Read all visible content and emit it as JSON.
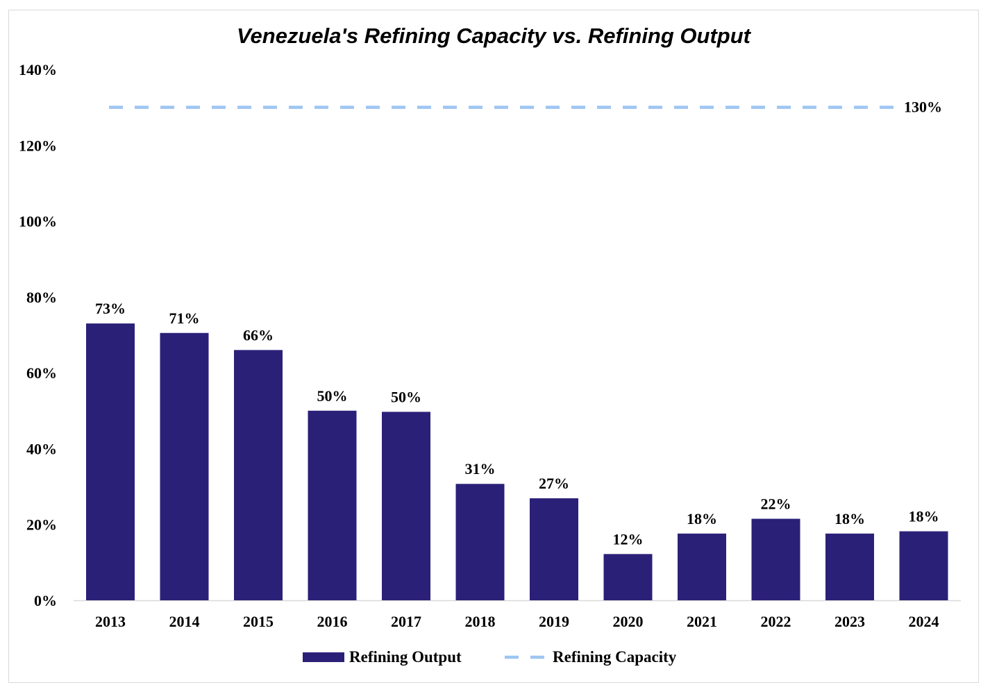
{
  "chart_data": {
    "type": "bar",
    "title": "Venezuela's Refining Capacity vs. Refining Output",
    "xlabel": "",
    "ylabel": "",
    "categories": [
      "2013",
      "2014",
      "2015",
      "2016",
      "2017",
      "2018",
      "2019",
      "2020",
      "2021",
      "2022",
      "2023",
      "2024"
    ],
    "series": [
      {
        "name": "Refining Output",
        "type": "bar",
        "values": [
          73,
          71,
          66,
          50,
          50,
          31,
          27,
          12,
          18,
          22,
          18,
          18
        ],
        "precise_values": [
          73,
          70.5,
          66,
          50,
          49.7,
          30.7,
          26.9,
          12.2,
          17.6,
          21.5,
          17.6,
          18.2
        ],
        "labels": [
          "73%",
          "71%",
          "66%",
          "50%",
          "50%",
          "31%",
          "27%",
          "12%",
          "18%",
          "22%",
          "18%",
          "18%"
        ],
        "color": "#2b2078"
      },
      {
        "name": "Refining Capacity",
        "type": "line",
        "style": "dashed",
        "values": [
          130,
          130,
          130,
          130,
          130,
          130,
          130,
          130,
          130,
          130,
          130,
          130
        ],
        "end_label": "130%",
        "color": "#9ec5f2"
      }
    ],
    "ylim": [
      0,
      140
    ],
    "yticks": [
      0,
      20,
      40,
      60,
      80,
      100,
      120,
      140
    ],
    "ytick_labels": [
      "0%",
      "20%",
      "40%",
      "60%",
      "80%",
      "100%",
      "120%",
      "140%"
    ],
    "grid": false,
    "legend_position": "bottom-center"
  }
}
